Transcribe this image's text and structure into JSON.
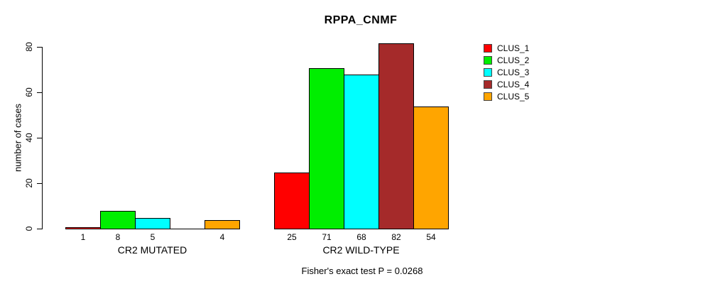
{
  "title": "RPPA_CNMF",
  "subtitle": "Fisher's exact test P = 0.0268",
  "chart_data": {
    "type": "bar",
    "title": "RPPA_CNMF",
    "xlabel": "",
    "ylabel": "number of cases",
    "ylim": [
      0,
      80
    ],
    "yticks": [
      0,
      20,
      40,
      60,
      80
    ],
    "grid": false,
    "legend_position": "right",
    "categories": [
      "CR2 MUTATED",
      "CR2 WILD-TYPE"
    ],
    "series": [
      {
        "name": "CLUS_1",
        "color": "#FF0000",
        "values": [
          1,
          25
        ]
      },
      {
        "name": "CLUS_2",
        "color": "#00EE00",
        "values": [
          8,
          71
        ]
      },
      {
        "name": "CLUS_3",
        "color": "#00FFFF",
        "values": [
          5,
          68
        ]
      },
      {
        "name": "CLUS_4",
        "color": "#A52A2A",
        "values": [
          0,
          82
        ]
      },
      {
        "name": "CLUS_5",
        "color": "#FFA500",
        "values": [
          4,
          54
        ]
      }
    ],
    "bar_value_labels": [
      [
        "1",
        "8",
        "5",
        "",
        "4"
      ],
      [
        "25",
        "71",
        "68",
        "82",
        "54"
      ]
    ],
    "annotation": "Fisher's exact test P = 0.0268"
  }
}
